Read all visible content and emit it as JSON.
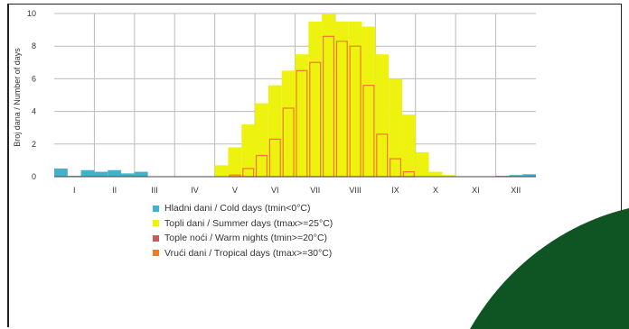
{
  "chart_data": {
    "type": "bar",
    "ylabel": "Broj dana / Number of days",
    "ylim": [
      0,
      10
    ],
    "yticks": [
      "0",
      "2",
      "4",
      "6",
      "8",
      "10"
    ],
    "months": [
      "I",
      "II",
      "III",
      "IV",
      "V",
      "VI",
      "VII",
      "VIII",
      "IX",
      "X",
      "XI",
      "XII"
    ],
    "slots_per_month": 3,
    "grid": "vertical month separators and horizontal lines at y ticks",
    "series": [
      {
        "name": "Hladni dani / Cold days (tmin<0°C)",
        "color": "#3fb3c9",
        "values": [
          0.5,
          0.05,
          0.4,
          0.3,
          0.4,
          0.2,
          0.3,
          0,
          0,
          0,
          0,
          0,
          0,
          0,
          0,
          0,
          0,
          0,
          0,
          0,
          0,
          0,
          0,
          0,
          0,
          0,
          0,
          0,
          0,
          0,
          0,
          0,
          0,
          0.05,
          0.1,
          0.15
        ]
      },
      {
        "name": "Topli dani / Summer days (tmax>=25°C)",
        "color": "#eef20f",
        "values": [
          0,
          0,
          0,
          0,
          0,
          0,
          0,
          0,
          0,
          0,
          0,
          0,
          0.7,
          1.8,
          3.2,
          4.5,
          5.6,
          6.5,
          7.5,
          9.5,
          10,
          9.5,
          9.5,
          9.2,
          7.5,
          6,
          3.8,
          1.5,
          0.3,
          0.1,
          0,
          0,
          0,
          0,
          0,
          0
        ]
      },
      {
        "name": "Tople noći / Warm nights (tmin>=20°C)",
        "color": "#c85a5a",
        "values": [
          0,
          0,
          0,
          0,
          0,
          0,
          0,
          0,
          0,
          0,
          0,
          0,
          0,
          0,
          0,
          0,
          0,
          0,
          0,
          0,
          0,
          0,
          0,
          0,
          0,
          0,
          0,
          0,
          0,
          0,
          0,
          0,
          0,
          0,
          0,
          0
        ]
      },
      {
        "name": "Vrući dani / Tropical days (tmax>=30°C)",
        "color": "#f07a2c",
        "values": [
          0,
          0,
          0,
          0,
          0,
          0,
          0,
          0,
          0,
          0,
          0,
          0,
          0,
          0.1,
          0.5,
          1.3,
          2.3,
          4.2,
          6.5,
          7,
          8.6,
          8.3,
          8,
          5.6,
          2.6,
          1.1,
          0.3,
          0,
          0,
          0,
          0,
          0,
          0,
          0,
          0,
          0
        ]
      }
    ]
  }
}
